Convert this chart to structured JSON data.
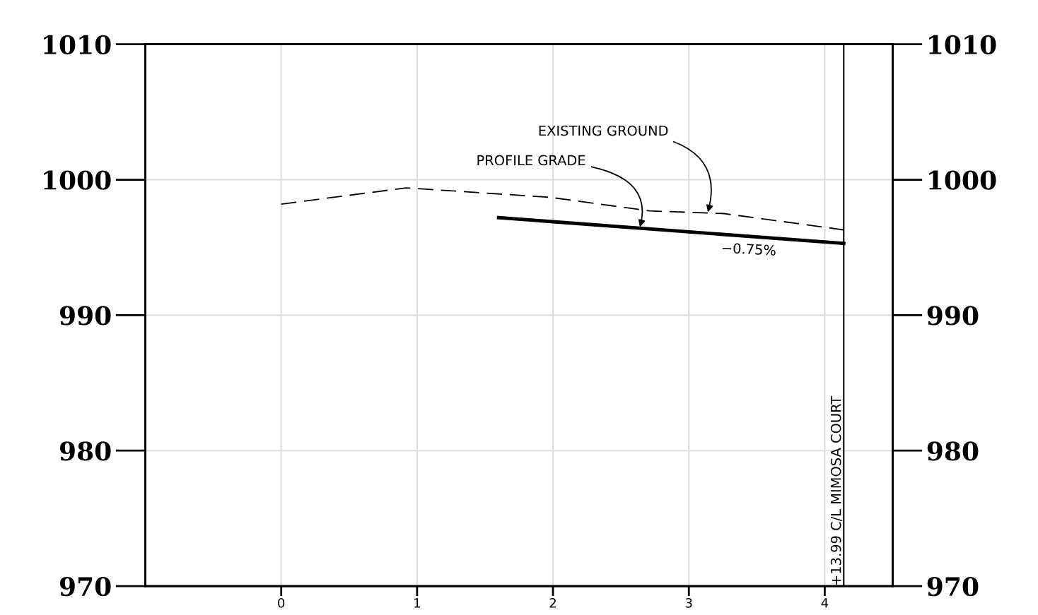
{
  "chart_data": {
    "type": "line",
    "series": [
      {
        "color": "#000000",
        "line_style": "dashed",
        "x": [
          0,
          0.92,
          1.98,
          2.71,
          3.26,
          4.14
        ],
        "values": [
          998.2,
          999.4,
          998.7,
          997.7,
          997.5,
          996.3
        ]
      },
      {
        "color": "#000000",
        "line_style": "solid",
        "x": [
          1.6,
          4.14
        ],
        "values": [
          997.2,
          995.3
        ]
      }
    ],
    "xlim": [
      -1,
      4.5
    ],
    "xticks": [
      0,
      1,
      2,
      3,
      4
    ],
    "ylim": [
      970,
      1010
    ],
    "yticks": [
      970,
      980,
      990,
      1000,
      1010
    ],
    "y2lim": [
      970,
      1010
    ],
    "y2ticks": [
      970,
      980,
      990,
      1000,
      1010
    ],
    "grid": true,
    "ref_lines": [
      {
        "axis": "x",
        "value": 4.1399,
        "label": "+13.99 C/L MIMOSA COURT",
        "color": "#000000"
      }
    ],
    "annotations": [
      {
        "text": "EXISTING GROUND",
        "x": 3.14,
        "y": 997.6
      },
      {
        "text": "PROFILE GRADE",
        "x": 2.64,
        "y": 996.5
      },
      "−0.75%"
    ]
  }
}
